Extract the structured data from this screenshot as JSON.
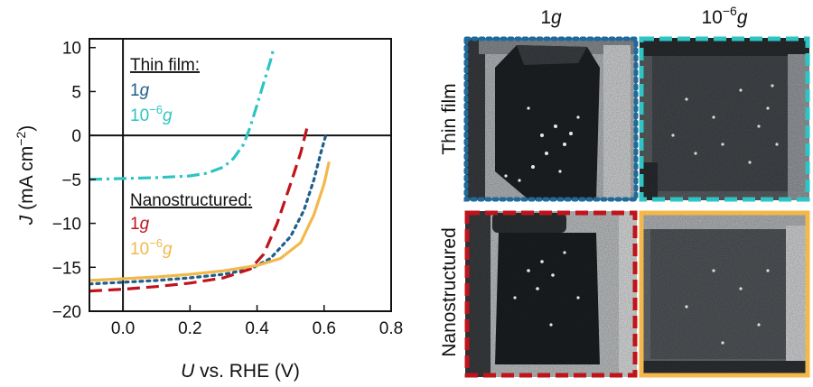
{
  "chart_data": {
    "type": "line",
    "xlabel": "U vs. RHE (V)",
    "ylabel": "J (mA cm−2)",
    "xlim": [
      -0.1,
      0.8
    ],
    "ylim": [
      -20,
      11
    ],
    "xticks": [
      "0.0",
      "0.2",
      "0.4",
      "0.6",
      "0.8"
    ],
    "xtick_values": [
      0.0,
      0.2,
      0.4,
      0.6,
      0.8
    ],
    "yticks": [
      "10",
      "5",
      "0",
      "−5",
      "−10",
      "−15",
      "−20"
    ],
    "ytick_values": [
      10,
      5,
      0,
      -5,
      -10,
      -15,
      -20
    ],
    "grid": false,
    "legend": {
      "groups": [
        {
          "heading": "Thin film:",
          "entries": [
            {
              "label": "1g",
              "color": "#1f5f8b"
            },
            {
              "label": "10−6g",
              "color": "#2ec4c4"
            }
          ]
        },
        {
          "heading": "Nanostructured:",
          "entries": [
            {
              "label": "1g",
              "color": "#c0141c"
            },
            {
              "label": "10−6g",
              "color": "#f2b84b"
            }
          ]
        }
      ]
    },
    "series": [
      {
        "group": "Thin film",
        "label": "1g",
        "color": "#1f5f8b",
        "dash": "dotted",
        "x": [
          -0.1,
          0.0,
          0.1,
          0.2,
          0.3,
          0.38,
          0.44,
          0.5,
          0.54,
          0.57,
          0.59,
          0.605
        ],
        "y": [
          -16.9,
          -16.7,
          -16.5,
          -16.2,
          -15.8,
          -15.2,
          -14.0,
          -11.5,
          -8.5,
          -5.0,
          -2.0,
          0.0
        ]
      },
      {
        "group": "Thin film",
        "label": "10−6g",
        "color": "#2ec4c4",
        "dash": "dashdot",
        "x": [
          -0.1,
          0.0,
          0.1,
          0.2,
          0.25,
          0.3,
          0.33,
          0.36,
          0.38,
          0.4,
          0.42,
          0.44,
          0.45
        ],
        "y": [
          -5.0,
          -4.9,
          -4.8,
          -4.6,
          -4.3,
          -3.6,
          -2.6,
          -1.0,
          1.0,
          3.5,
          6.0,
          8.5,
          10.0
        ]
      },
      {
        "group": "Nanostructured",
        "label": "1g",
        "color": "#c0141c",
        "dash": "dashed",
        "x": [
          -0.1,
          0.0,
          0.1,
          0.2,
          0.3,
          0.38,
          0.42,
          0.46,
          0.5,
          0.53,
          0.55
        ],
        "y": [
          -17.7,
          -17.5,
          -17.2,
          -16.8,
          -16.2,
          -15.2,
          -13.5,
          -10.0,
          -5.5,
          -2.0,
          1.0
        ]
      },
      {
        "group": "Nanostructured",
        "label": "10−6g",
        "color": "#f2b84b",
        "dash": "solid",
        "x": [
          -0.1,
          0.0,
          0.1,
          0.2,
          0.3,
          0.4,
          0.47,
          0.53,
          0.57,
          0.6,
          0.615
        ],
        "y": [
          -16.5,
          -16.3,
          -16.1,
          -15.8,
          -15.4,
          -14.8,
          -14.0,
          -12.2,
          -9.0,
          -5.5,
          -3.0
        ]
      }
    ]
  },
  "image_grid": {
    "columns": [
      "1g",
      "10−6g"
    ],
    "rows": [
      "Thin film",
      "Nanostructured"
    ],
    "frame_colors": {
      "thin_film_1g": "#1f6a9a",
      "thin_film_10-6g": "#2ec4c4",
      "nanostructured_1g": "#c0141c",
      "nanostructured_10-6g": "#f2b84b"
    }
  }
}
